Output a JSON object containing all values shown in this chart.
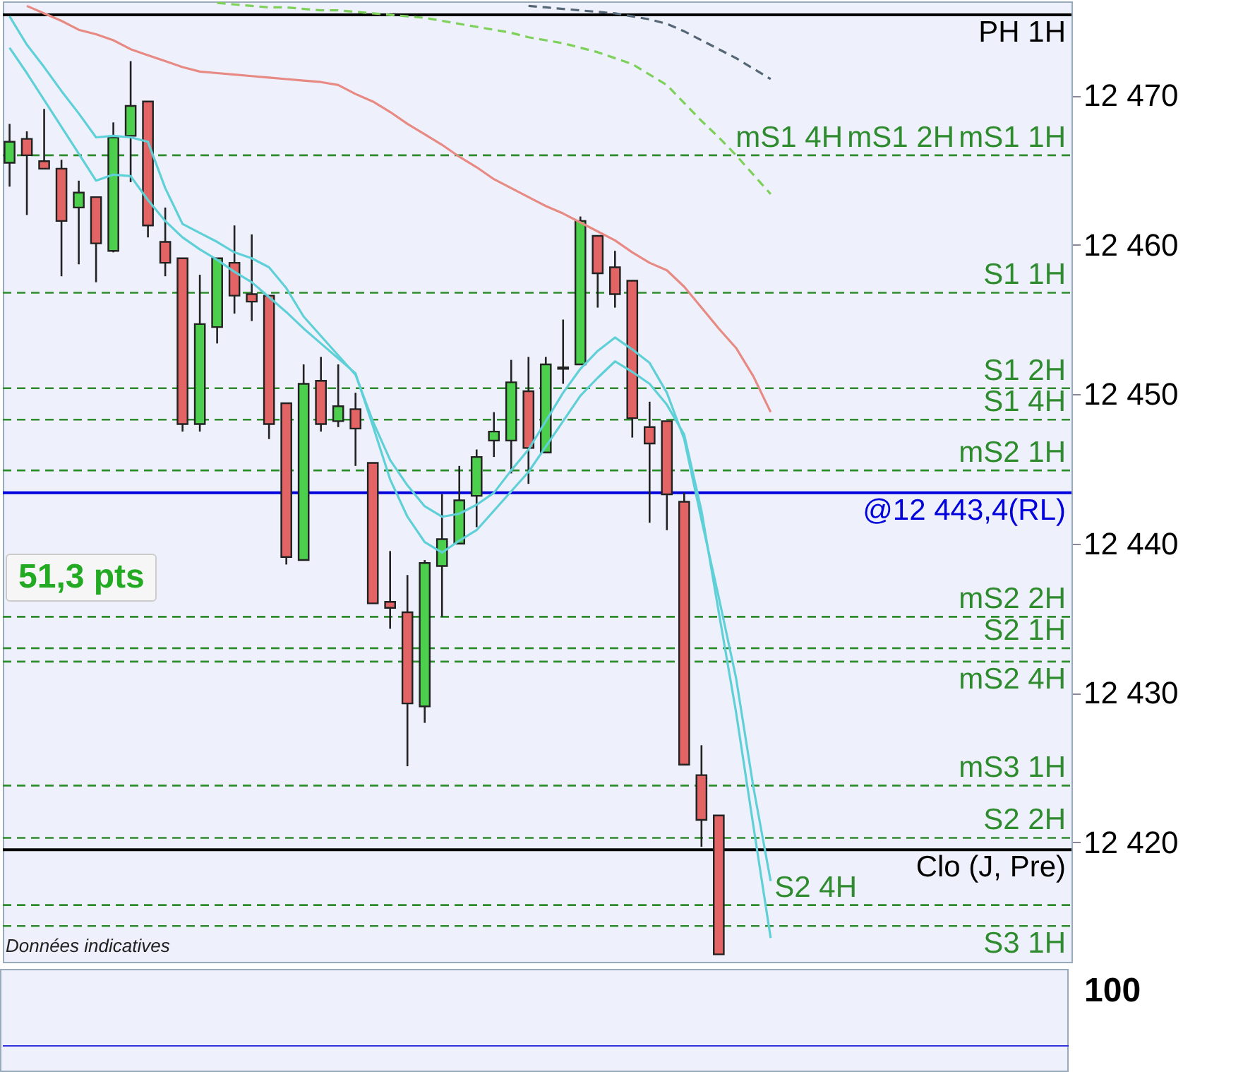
{
  "chart_data": [
    {
      "type": "candlestick",
      "categories": [
        null,
        null,
        null,
        null,
        null,
        null,
        null,
        null,
        null,
        null,
        null,
        null,
        null,
        null,
        null,
        null,
        null,
        null,
        null,
        null,
        null,
        null,
        null,
        null,
        null,
        null,
        null,
        null,
        null,
        null,
        null,
        null,
        null,
        null,
        null,
        null,
        null,
        null,
        null,
        null,
        null,
        null,
        null,
        null,
        null,
        null,
        null,
        null,
        null,
        null,
        null,
        null,
        null,
        null,
        null,
        null,
        null,
        null,
        null,
        null,
        null,
        null
      ],
      "ohlc": [
        [
          12465.5,
          12468.1,
          12463.9,
          12466.9
        ],
        [
          12467.1,
          12467.6,
          12462.0,
          12466.0
        ],
        [
          12465.6,
          12469.1,
          12465.1,
          12465.1
        ],
        [
          12465.1,
          12465.7,
          12457.9,
          12461.6
        ],
        [
          12462.5,
          12464.3,
          12458.7,
          12463.5
        ],
        [
          12463.2,
          12463.2,
          12457.5,
          12460.1
        ],
        [
          12459.6,
          12468.2,
          12459.5,
          12467.2
        ],
        [
          12467.3,
          12472.3,
          12464.2,
          12469.3
        ],
        [
          12469.6,
          12469.6,
          12460.5,
          12461.3
        ],
        [
          12460.2,
          12462.5,
          12457.9,
          12458.8
        ],
        [
          12459.1,
          12459.1,
          12447.5,
          12448.0
        ],
        [
          12448.0,
          12458.0,
          12447.5,
          12454.7
        ],
        [
          12454.5,
          12459.1,
          12453.4,
          12459.1
        ],
        [
          12458.8,
          12461.3,
          12455.4,
          12456.6
        ],
        [
          12456.7,
          12460.7,
          12454.9,
          12456.2
        ],
        [
          12456.6,
          12456.6,
          12447.0,
          12448.0
        ],
        [
          12449.4,
          12449.4,
          12438.6,
          12439.1
        ],
        [
          12438.9,
          12452.0,
          12438.9,
          12450.7
        ],
        [
          12450.9,
          12452.5,
          12447.5,
          12448.0
        ],
        [
          12448.2,
          12452.0,
          12447.8,
          12449.2
        ],
        [
          12449.0,
          12450.1,
          12445.2,
          12447.7
        ],
        [
          12445.4,
          12445.4,
          12436.0,
          12436.0
        ],
        [
          12436.1,
          12439.5,
          12434.3,
          12435.7
        ],
        [
          12435.4,
          12437.9,
          12425.1,
          12429.3
        ],
        [
          12429.1,
          12438.9,
          12428.0,
          12438.7
        ],
        [
          12438.5,
          12443.3,
          12435.1,
          12440.3
        ],
        [
          12440.0,
          12445.2,
          12440.0,
          12442.9
        ],
        [
          12443.2,
          12446.3,
          12441.1,
          12445.8
        ],
        [
          12446.9,
          12448.8,
          12445.8,
          12447.5
        ],
        [
          12446.9,
          12452.3,
          12444.7,
          12450.8
        ],
        [
          12450.2,
          12452.5,
          12444.0,
          12446.4
        ],
        [
          12446.1,
          12452.5,
          12446.1,
          12452.0
        ],
        [
          12451.7,
          12455.0,
          12450.7,
          12451.8
        ],
        [
          12452.0,
          12461.9,
          12452.0,
          12461.6
        ],
        [
          12460.6,
          12460.6,
          12455.8,
          12458.1
        ],
        [
          12458.5,
          12459.6,
          12455.8,
          12456.7
        ],
        [
          12457.6,
          12457.6,
          12447.1,
          12448.4
        ],
        [
          12447.8,
          12449.5,
          12441.4,
          12446.7
        ],
        [
          12448.2,
          12448.2,
          12440.9,
          12443.3
        ],
        [
          12442.8,
          12443.4,
          12425.2,
          12425.2
        ],
        [
          12424.5,
          12426.5,
          12419.7,
          12421.5
        ],
        [
          12421.8,
          12421.8,
          12412.5,
          12412.5
        ],
        null,
        null,
        null,
        null,
        null,
        null,
        null,
        null,
        null,
        null,
        null,
        null,
        null,
        null,
        null,
        null,
        null,
        null,
        null,
        null
      ],
      "series": [
        {
          "type": "line",
          "color": "#5fd0d8",
          "line_style": "solid",
          "values": [
            12475.3,
            12473.4,
            12471.9,
            12470.3,
            12468.8,
            12467.2,
            12467.3,
            12467.2,
            12466.9,
            12463.8,
            12461.4,
            12460.8,
            12460.2,
            12459.5,
            12459.1,
            12458.5,
            12457.1,
            12455.2,
            12453.9,
            12452.6,
            12451.3,
            12448.2,
            12445.6,
            12443.9,
            12442.5,
            12441.8,
            12442.0,
            12442.6,
            12443.4,
            12444.9,
            12446.3,
            12448.2,
            12450.1,
            12451.7,
            12452.9,
            12453.8,
            12453.0,
            12452.1,
            12450.1,
            12447.0,
            12441.6,
            12436.4,
            12431.0,
            12423.7,
            12417.4,
            null,
            null,
            null,
            null,
            null,
            null,
            null,
            null,
            null,
            null,
            null,
            null,
            null,
            null,
            null,
            null,
            null
          ]
        },
        {
          "type": "line",
          "color": "#5fd0d8",
          "line_style": "solid",
          "values": [
            12473.2,
            12471.5,
            12469.7,
            12467.9,
            12466.1,
            12464.3,
            12464.7,
            12464.6,
            12463.0,
            12461.6,
            12460.5,
            12459.7,
            12459.0,
            12458.2,
            12457.5,
            12456.5,
            12455.5,
            12454.4,
            12453.4,
            12452.4,
            12451.4,
            12447.9,
            12444.3,
            12441.8,
            12440.1,
            12439.4,
            12440.2,
            12440.9,
            12442.2,
            12443.5,
            12444.8,
            12446.5,
            12448.2,
            12449.9,
            12451.1,
            12452.2,
            12451.5,
            12450.7,
            12449.3,
            12447.3,
            12442.2,
            12435.4,
            12428.7,
            12421.1,
            12413.6,
            null,
            null,
            null,
            null,
            null,
            null,
            null,
            null,
            null,
            null,
            null,
            null,
            null,
            null,
            null,
            null,
            null
          ]
        },
        {
          "type": "line",
          "color": "#e88a84",
          "line_style": "solid",
          "values": [
            null,
            12476.0,
            12475.5,
            12475.0,
            12474.4,
            12474.1,
            12473.7,
            12473.1,
            12472.7,
            12472.3,
            12471.9,
            12471.6,
            12471.5,
            12471.4,
            12471.3,
            12471.2,
            12471.1,
            12471.0,
            12470.9,
            12470.7,
            12470.1,
            12469.6,
            12468.9,
            12468.1,
            12467.4,
            12466.7,
            12465.9,
            12465.2,
            12464.4,
            12463.8,
            12463.2,
            12462.6,
            12462.1,
            12461.5,
            12460.9,
            12460.3,
            12459.5,
            12458.8,
            12458.3,
            12457.2,
            12455.8,
            12454.4,
            12453.1,
            12451.2,
            12448.8,
            null,
            null,
            null,
            null,
            null,
            null,
            null,
            null,
            null,
            null,
            null,
            null,
            null,
            null,
            null,
            null,
            null
          ]
        },
        {
          "type": "line",
          "color": "#7dd05a",
          "line_style": "dashed",
          "values": [
            null,
            null,
            null,
            null,
            null,
            null,
            null,
            null,
            null,
            null,
            null,
            null,
            12476.2,
            12476.1,
            12476.0,
            12475.9,
            12475.9,
            12475.8,
            12475.7,
            12475.7,
            12475.6,
            12475.5,
            12475.4,
            12475.3,
            12475.2,
            12475.0,
            12474.8,
            12474.6,
            12474.4,
            12474.2,
            12473.9,
            12473.7,
            12473.5,
            12473.2,
            12472.9,
            12472.5,
            12472.1,
            12471.4,
            12470.7,
            12469.5,
            12468.3,
            12467.2,
            12466.0,
            12464.7,
            12463.4,
            null,
            null,
            null,
            null,
            null,
            null,
            null,
            null,
            null,
            null,
            null,
            null,
            null,
            null,
            null,
            null,
            null
          ]
        },
        {
          "type": "line",
          "color": "#556677",
          "line_style": "dashed",
          "values": [
            null,
            null,
            null,
            null,
            null,
            null,
            null,
            null,
            null,
            null,
            null,
            null,
            null,
            null,
            null,
            null,
            null,
            null,
            null,
            null,
            null,
            null,
            null,
            null,
            null,
            null,
            null,
            null,
            null,
            null,
            12476.0,
            12475.9,
            12475.8,
            12475.7,
            12475.6,
            12475.5,
            12475.3,
            12475.1,
            12474.8,
            12474.3,
            12473.7,
            12473.1,
            12472.5,
            12471.8,
            12471.1,
            null,
            null,
            null,
            null,
            null,
            null,
            null,
            null,
            null,
            null,
            null,
            null,
            null,
            null,
            null,
            null,
            null
          ]
        }
      ],
      "ylim": [
        12412,
        12476.3
      ],
      "yticks": [
        {
          "value": 12420,
          "label": "12 420"
        },
        {
          "value": 12430,
          "label": "12 430"
        },
        {
          "value": 12440,
          "label": "12 440"
        },
        {
          "value": 12450,
          "label": "12 450"
        },
        {
          "value": 12460,
          "label": "12 460"
        },
        {
          "value": 12470,
          "label": "12 470"
        }
      ],
      "tick_labels": "y",
      "ref_lines": [
        {
          "axis": "y",
          "value": 12475.4,
          "label": "PH 1H",
          "color": "#000000",
          "line_style": "solid"
        },
        {
          "axis": "y",
          "value": 12466.0,
          "label": "mS1 1H",
          "color": "#2e8b2e",
          "line_style": "dashed"
        },
        {
          "axis": "y",
          "value": 12456.8,
          "label": "S1 1H",
          "color": "#2e8b2e",
          "line_style": "dashed"
        },
        {
          "axis": "y",
          "value": 12450.4,
          "label": "S1 2H",
          "color": "#2e8b2e",
          "line_style": "dashed"
        },
        {
          "axis": "y",
          "value": 12448.3,
          "label": "S1 4H",
          "color": "#2e8b2e",
          "line_style": "dashed"
        },
        {
          "axis": "y",
          "value": 12444.9,
          "label": "mS2 1H",
          "color": "#2e8b2e",
          "line_style": "dashed"
        },
        {
          "axis": "y",
          "value": 12443.4,
          "label": "@12 443,4(RL)",
          "color": "#0000dd",
          "line_style": "solid"
        },
        {
          "axis": "y",
          "value": 12435.1,
          "label": "mS2 2H",
          "color": "#2e8b2e",
          "line_style": "dashed"
        },
        {
          "axis": "y",
          "value": 12433.0,
          "label": "S2 1H",
          "color": "#2e8b2e",
          "line_style": "dashed"
        },
        {
          "axis": "y",
          "value": 12432.1,
          "label": "mS2 4H",
          "color": "#2e8b2e",
          "line_style": "dashed"
        },
        {
          "axis": "y",
          "value": 12423.8,
          "label": "mS3 1H",
          "color": "#2e8b2e",
          "line_style": "dashed"
        },
        {
          "axis": "y",
          "value": 12420.3,
          "label": "S2 2H",
          "color": "#2e8b2e",
          "line_style": "dashed"
        },
        {
          "axis": "y",
          "value": 12419.5,
          "label": "Clo (J, Pre)",
          "color": "#000000",
          "line_style": "solid"
        },
        {
          "axis": "y",
          "value": 12415.8,
          "label": "S2 4H",
          "color": "#2e8b2e",
          "line_style": "dashed"
        },
        {
          "axis": "y",
          "value": 12414.4,
          "label": "S3 1H",
          "color": "#2e8b2e",
          "line_style": "dashed"
        }
      ],
      "annotations": [
        {
          "text": "mS1 2H",
          "y": 12466.0
        },
        {
          "text": "mS1 4H",
          "y": 12466.0
        },
        "51,3 pts",
        "Données indicatives"
      ]
    },
    {
      "type": "other",
      "annotations": [
        "100"
      ]
    }
  ]
}
